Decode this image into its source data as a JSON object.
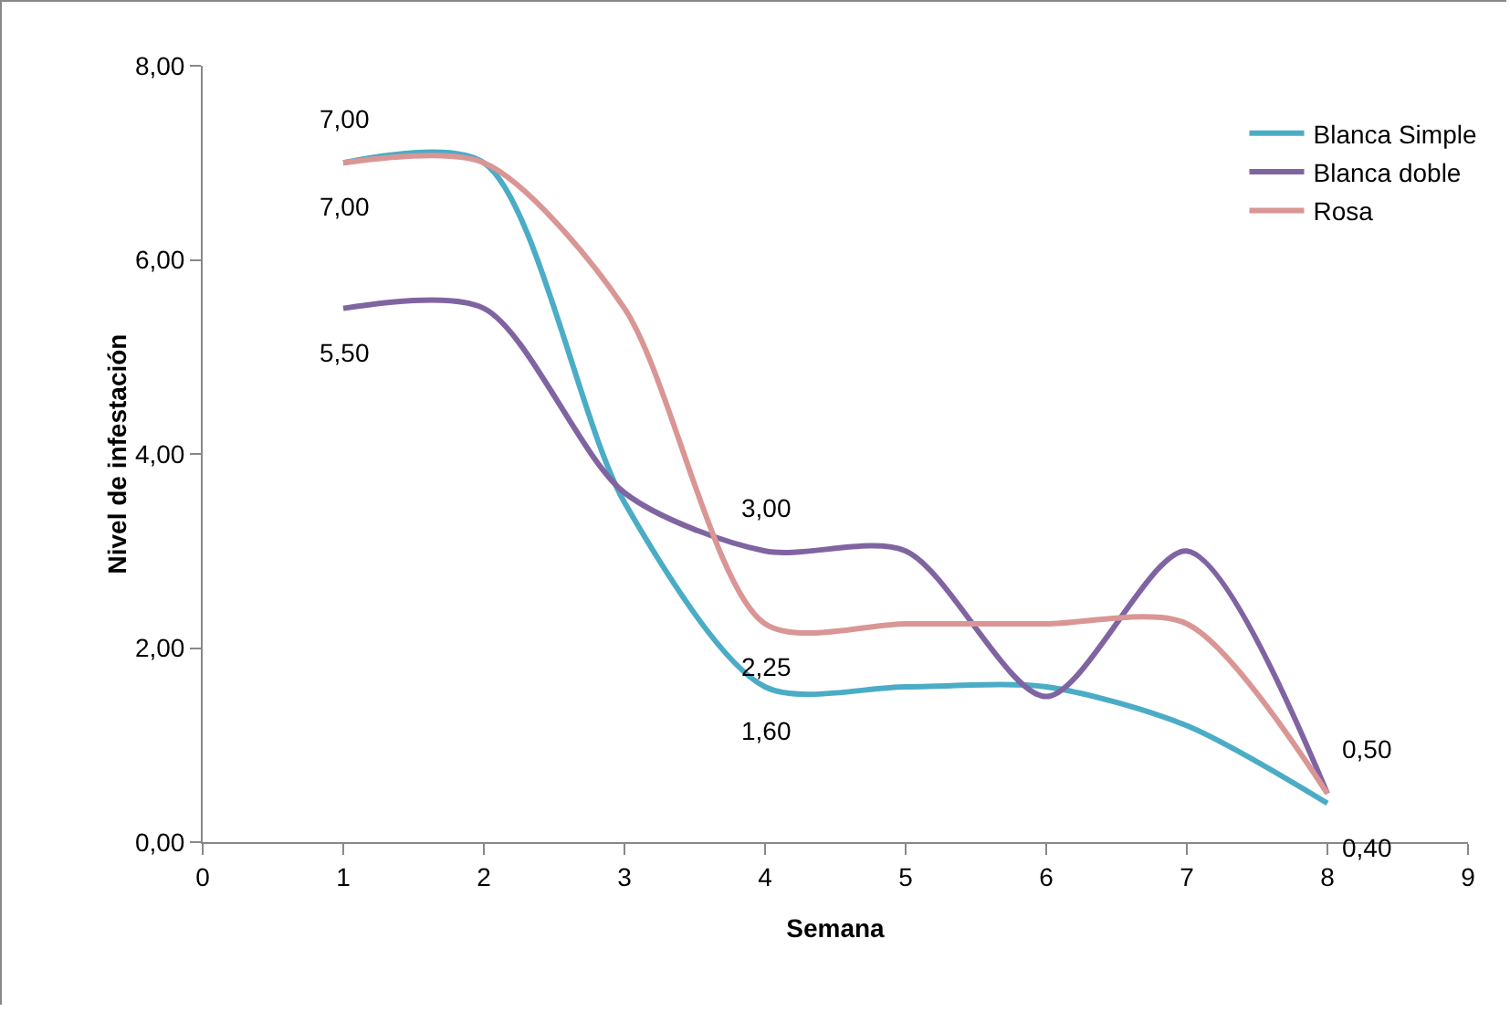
{
  "chart_data": {
    "type": "line",
    "xlabel": "Semana",
    "ylabel": "Nivel de infestación",
    "x": [
      1,
      2,
      3,
      4,
      5,
      6,
      7,
      8
    ],
    "series": [
      {
        "name": "Blanca Simple",
        "color": "#4bacc6",
        "values": [
          7.0,
          7.0,
          3.5,
          1.6,
          1.6,
          1.6,
          1.2,
          0.4
        ],
        "value_labels": [
          "7,00",
          null,
          null,
          "1,60",
          null,
          null,
          null,
          "0,40"
        ]
      },
      {
        "name": "Blanca doble",
        "color": "#8064a2",
        "values": [
          5.5,
          5.5,
          3.6,
          3.0,
          3.0,
          1.5,
          3.0,
          0.5
        ],
        "value_labels": [
          "5,50",
          null,
          null,
          "3,00",
          null,
          null,
          null,
          null
        ]
      },
      {
        "name": "Rosa",
        "color": "#d99694",
        "values": [
          7.0,
          7.0,
          5.5,
          2.25,
          2.25,
          2.25,
          2.25,
          0.5
        ],
        "value_labels": [
          "7,00",
          null,
          null,
          "2,25",
          null,
          null,
          null,
          "0,50"
        ]
      }
    ],
    "xlim": [
      0,
      9
    ],
    "xticks": [
      0,
      1,
      2,
      3,
      4,
      5,
      6,
      7,
      8,
      9
    ],
    "ylim": [
      0,
      8
    ],
    "yticks": [
      {
        "value": 0,
        "label": "0,00"
      },
      {
        "value": 2,
        "label": "2,00"
      },
      {
        "value": 4,
        "label": "4,00"
      },
      {
        "value": 6,
        "label": "6,00"
      },
      {
        "value": 8,
        "label": "8,00"
      }
    ],
    "grid": false,
    "legend": "right",
    "marker": "none",
    "line_style": "solid"
  }
}
